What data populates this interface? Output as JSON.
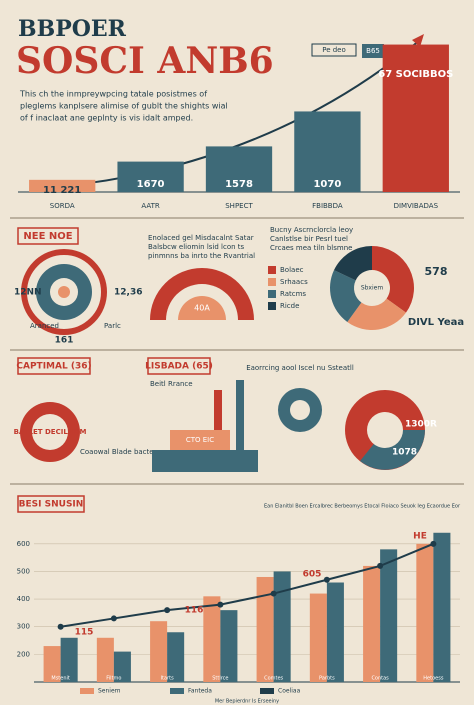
{
  "header": {
    "title": "BBPOER",
    "subtitle": "SOSCI ANB6",
    "intro": [
      "This ch the inmpreywpcing tatale posistmes of",
      "pleglems kanplsere alimise of gublt the shights wial",
      "of f inaclaat ane geplnty is vis idalt amped."
    ],
    "badges": [
      "Pe deo",
      "B65"
    ]
  },
  "middle": {
    "title": "NEE NOE",
    "wheel_labels": [
      "12NN",
      "12,36",
      "161"
    ],
    "gauge_label": "40A",
    "text_a": [
      "Enolaced gel Misdacalnt Satar",
      "Balsbcw eliomin lsid lcon ts",
      "pinmnns ba inrto the Rvantrial"
    ],
    "text_b": [
      "Bucny Ascrnclorcla leoy",
      "Canlstlse bir Pesrl tuel",
      "Crcaes mea tiln blsmne"
    ],
    "side_notes": [
      "Aranced",
      "Parlc"
    ]
  },
  "lower": {
    "left_title": "CAPTIMAL (36)",
    "right_title": "LISBADA (65)",
    "seal_text": "BATLET DECILNDM",
    "donut_labels": [
      "1300R",
      "1078"
    ],
    "gauge_label": "CTO EIC",
    "notes": [
      "Eaorrcing aool Iscel nu Ssteatll",
      "Coaowal Blade bactey",
      "Beitl Rrance"
    ]
  },
  "chart_data": [
    {
      "type": "bar",
      "categories": [
        "SORDA",
        "AATR",
        "SHPECT",
        "FBIBBDA",
        "DIMVIBADAS"
      ],
      "values": [
        8,
        20,
        30,
        53,
        97
      ],
      "colors": [
        "#e8926a",
        "#3e6a78",
        "#3e6a78",
        "#3e6a78",
        "#c23b2e"
      ],
      "annotations": [
        "11 221",
        "1670",
        "1578",
        "1070",
        "67 SOCIBBOS"
      ],
      "ylim": [
        0,
        100
      ]
    },
    {
      "type": "pie",
      "categories": [
        "Bolaec",
        "Srhaacs",
        "Ratcms",
        "Ricde"
      ],
      "values": [
        35,
        25,
        22,
        18
      ],
      "colors": [
        "#c23b2e",
        "#e8926a",
        "#3e6a78",
        "#1f3c4a"
      ],
      "center_label": "Sbxiem",
      "annotations": [
        "578",
        "DIVL Yeaa"
      ]
    },
    {
      "type": "combo",
      "title": "BESI SNUSIN",
      "subtitle": "Ean Elanitbl Boen Ercalbrec Berbeomys Etocal Floiaco Seuok Ieg Ecaordue Eor",
      "x_label": "Mer Bepierdnr Is Erseeiny",
      "categories": [
        "Mstenit",
        "Filtmo",
        "Itarts",
        "Sttlrce",
        "Comtes",
        "Parbts",
        "Contas",
        "Hetoess"
      ],
      "series": [
        {
          "name": "Seniem",
          "color": "#e8926a",
          "values": [
            230,
            260,
            320,
            410,
            480,
            420,
            520,
            600
          ]
        },
        {
          "name": "Fanteda",
          "color": "#3e6a78",
          "values": [
            260,
            210,
            280,
            360,
            500,
            460,
            580,
            640
          ]
        },
        {
          "name": "Coeliaa",
          "color": "#1f3c4a",
          "type": "line",
          "values": [
            300,
            330,
            360,
            380,
            420,
            470,
            520,
            600
          ]
        }
      ],
      "annotations": [
        "115",
        "116",
        "605",
        "HE"
      ],
      "ylim": [
        100,
        650
      ],
      "yticks": [
        200,
        300,
        400,
        500,
        600
      ],
      "grid": true
    }
  ]
}
